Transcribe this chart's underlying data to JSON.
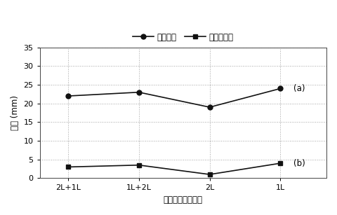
{
  "x_labels": [
    "2L+1L",
    "1L+2L",
    "2L",
    "1L"
  ],
  "series_a": [
    22.0,
    23.0,
    19.0,
    24.0
  ],
  "series_b": [
    3.0,
    3.5,
    1.0,
    4.0
  ],
  "series_a_label": "元の設計",
  "series_b_label": "新たな設計",
  "ylabel": "反り (mm)",
  "xlabel": "回路構造の層の数",
  "ylim": [
    0,
    35
  ],
  "yticks": [
    0,
    5,
    10,
    15,
    20,
    25,
    30,
    35
  ],
  "annotation_a": "(a)",
  "annotation_b": "(b)",
  "line_color": "#111111",
  "marker_circle": "o",
  "marker_square": "s",
  "background_color": "#ffffff",
  "grid_color": "#999999",
  "legend_fontsize": 8.5,
  "axis_fontsize": 8.5,
  "tick_fontsize": 8
}
